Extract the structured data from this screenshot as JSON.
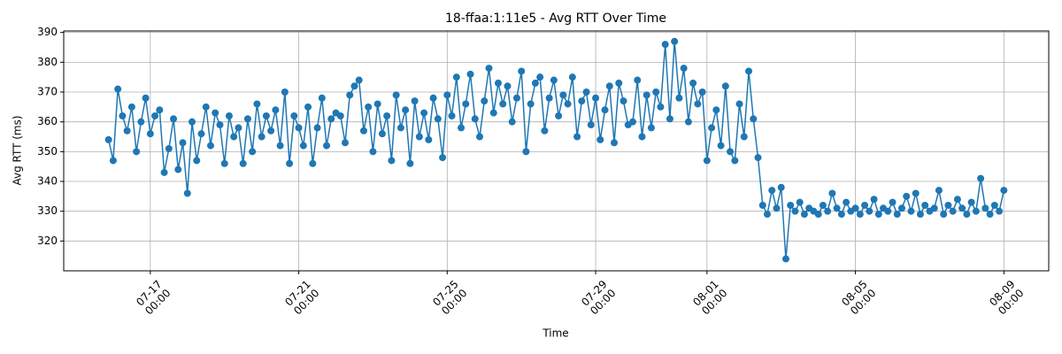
{
  "chart_data": {
    "type": "line",
    "title": "18-ffaa:1:11e5 - Avg RTT Over Time",
    "xlabel": "Time",
    "ylabel": "Avg RTT (ms)",
    "color": "#1f77b4",
    "grid": true,
    "xlim": [
      "07-14 16:00",
      "08-10 05:00"
    ],
    "xticks": [
      {
        "value": "07-17 00:00",
        "label": "07-17\n00:00"
      },
      {
        "value": "07-21 00:00",
        "label": "07-21\n00:00"
      },
      {
        "value": "07-25 00:00",
        "label": "07-25\n00:00"
      },
      {
        "value": "07-29 00:00",
        "label": "07-29\n00:00"
      },
      {
        "value": "08-01 00:00",
        "label": "08-01\n00:00"
      },
      {
        "value": "08-05 00:00",
        "label": "08-05\n00:00"
      },
      {
        "value": "08-09 00:00",
        "label": "08-09\n00:00"
      }
    ],
    "ylim": [
      310,
      390.5
    ],
    "yticks": [
      320,
      330,
      340,
      350,
      360,
      370,
      380,
      390
    ],
    "x": [
      "07-15 21:00",
      "07-16 00:00",
      "07-16 03:00",
      "07-16 06:00",
      "07-16 09:00",
      "07-16 12:00",
      "07-16 15:00",
      "07-16 18:00",
      "07-16 21:00",
      "07-17 00:00",
      "07-17 03:00",
      "07-17 06:00",
      "07-17 09:00",
      "07-17 12:00",
      "07-17 15:00",
      "07-17 18:00",
      "07-17 21:00",
      "07-18 00:00",
      "07-18 03:00",
      "07-18 06:00",
      "07-18 09:00",
      "07-18 12:00",
      "07-18 15:00",
      "07-18 18:00",
      "07-18 21:00",
      "07-19 00:00",
      "07-19 03:00",
      "07-19 06:00",
      "07-19 09:00",
      "07-19 12:00",
      "07-19 15:00",
      "07-19 18:00",
      "07-19 21:00",
      "07-20 00:00",
      "07-20 03:00",
      "07-20 06:00",
      "07-20 09:00",
      "07-20 12:00",
      "07-20 15:00",
      "07-20 18:00",
      "07-20 21:00",
      "07-21 00:00",
      "07-21 03:00",
      "07-21 06:00",
      "07-21 09:00",
      "07-21 12:00",
      "07-21 15:00",
      "07-21 18:00",
      "07-21 21:00",
      "07-22 00:00",
      "07-22 03:00",
      "07-22 06:00",
      "07-22 09:00",
      "07-22 12:00",
      "07-22 15:00",
      "07-22 18:00",
      "07-22 21:00",
      "07-23 00:00",
      "07-23 03:00",
      "07-23 06:00",
      "07-23 09:00",
      "07-23 12:00",
      "07-23 15:00",
      "07-23 18:00",
      "07-23 21:00",
      "07-24 00:00",
      "07-24 03:00",
      "07-24 06:00",
      "07-24 09:00",
      "07-24 12:00",
      "07-24 15:00",
      "07-24 18:00",
      "07-24 21:00",
      "07-25 00:00",
      "07-25 03:00",
      "07-25 06:00",
      "07-25 09:00",
      "07-25 12:00",
      "07-25 15:00",
      "07-25 18:00",
      "07-25 21:00",
      "07-26 00:00",
      "07-26 03:00",
      "07-26 06:00",
      "07-26 09:00",
      "07-26 12:00",
      "07-26 15:00",
      "07-26 18:00",
      "07-26 21:00",
      "07-27 00:00",
      "07-27 03:00",
      "07-27 06:00",
      "07-27 09:00",
      "07-27 12:00",
      "07-27 15:00",
      "07-27 18:00",
      "07-27 21:00",
      "07-28 00:00",
      "07-28 03:00",
      "07-28 06:00",
      "07-28 09:00",
      "07-28 12:00",
      "07-28 15:00",
      "07-28 18:00",
      "07-28 21:00",
      "07-29 00:00",
      "07-29 03:00",
      "07-29 06:00",
      "07-29 09:00",
      "07-29 12:00",
      "07-29 15:00",
      "07-29 18:00",
      "07-29 21:00",
      "07-30 00:00",
      "07-30 03:00",
      "07-30 06:00",
      "07-30 09:00",
      "07-30 12:00",
      "07-30 15:00",
      "07-30 18:00",
      "07-30 21:00",
      "07-31 00:00",
      "07-31 03:00",
      "07-31 06:00",
      "07-31 09:00",
      "07-31 12:00",
      "07-31 15:00",
      "07-31 18:00",
      "07-31 21:00",
      "08-01 00:00",
      "08-01 03:00",
      "08-01 06:00",
      "08-01 09:00",
      "08-01 12:00",
      "08-01 15:00",
      "08-01 18:00",
      "08-01 21:00",
      "08-02 00:00",
      "08-02 03:00",
      "08-02 06:00",
      "08-02 09:00",
      "08-02 12:00",
      "08-02 15:00",
      "08-02 18:00",
      "08-02 21:00",
      "08-03 00:00",
      "08-03 03:00",
      "08-03 06:00",
      "08-03 09:00",
      "08-03 12:00",
      "08-03 15:00",
      "08-03 18:00",
      "08-03 21:00",
      "08-04 00:00",
      "08-04 03:00",
      "08-04 06:00",
      "08-04 09:00",
      "08-04 12:00",
      "08-04 15:00",
      "08-04 18:00",
      "08-04 21:00",
      "08-05 00:00",
      "08-05 03:00",
      "08-05 06:00",
      "08-05 09:00",
      "08-05 12:00",
      "08-05 15:00",
      "08-05 18:00",
      "08-05 21:00",
      "08-06 00:00",
      "08-06 03:00",
      "08-06 06:00",
      "08-06 09:00",
      "08-06 12:00",
      "08-06 15:00",
      "08-06 18:00",
      "08-06 21:00",
      "08-07 00:00",
      "08-07 03:00",
      "08-07 06:00",
      "08-07 09:00",
      "08-07 12:00",
      "08-07 15:00",
      "08-07 18:00",
      "08-07 21:00",
      "08-08 00:00",
      "08-08 03:00",
      "08-08 06:00",
      "08-08 09:00",
      "08-08 12:00",
      "08-08 15:00",
      "08-08 18:00",
      "08-08 21:00",
      "08-09 00:00"
    ],
    "values": [
      354,
      347,
      371,
      362,
      357,
      365,
      350,
      360,
      368,
      356,
      362,
      364,
      343,
      351,
      361,
      344,
      353,
      336,
      360,
      347,
      356,
      365,
      352,
      363,
      359,
      346,
      362,
      355,
      358,
      346,
      361,
      350,
      366,
      355,
      362,
      357,
      364,
      352,
      370,
      346,
      362,
      358,
      352,
      365,
      346,
      358,
      368,
      352,
      361,
      363,
      362,
      353,
      369,
      372,
      374,
      357,
      365,
      350,
      366,
      356,
      362,
      347,
      369,
      358,
      364,
      346,
      367,
      355,
      363,
      354,
      368,
      361,
      348,
      369,
      362,
      375,
      358,
      366,
      376,
      361,
      355,
      367,
      378,
      363,
      373,
      366,
      372,
      360,
      368,
      377,
      350,
      366,
      373,
      375,
      357,
      368,
      374,
      362,
      369,
      366,
      375,
      355,
      367,
      370,
      359,
      368,
      354,
      364,
      372,
      353,
      373,
      367,
      359,
      360,
      374,
      355,
      369,
      358,
      370,
      365,
      386,
      361,
      387,
      368,
      378,
      360,
      373,
      366,
      370,
      347,
      358,
      364,
      352,
      372,
      350,
      347,
      366,
      355,
      377,
      361,
      348,
      332,
      329,
      337,
      331,
      338,
      314,
      332,
      330,
      333,
      329,
      331,
      330,
      329,
      332,
      330,
      336,
      331,
      329,
      333,
      330,
      331,
      329,
      332,
      330,
      334,
      329,
      331,
      330,
      333,
      329,
      331,
      335,
      330,
      336,
      329,
      332,
      330,
      331,
      337,
      329,
      332,
      330,
      334,
      331,
      329,
      333,
      330,
      341,
      331,
      329,
      332,
      330,
      337
    ]
  }
}
